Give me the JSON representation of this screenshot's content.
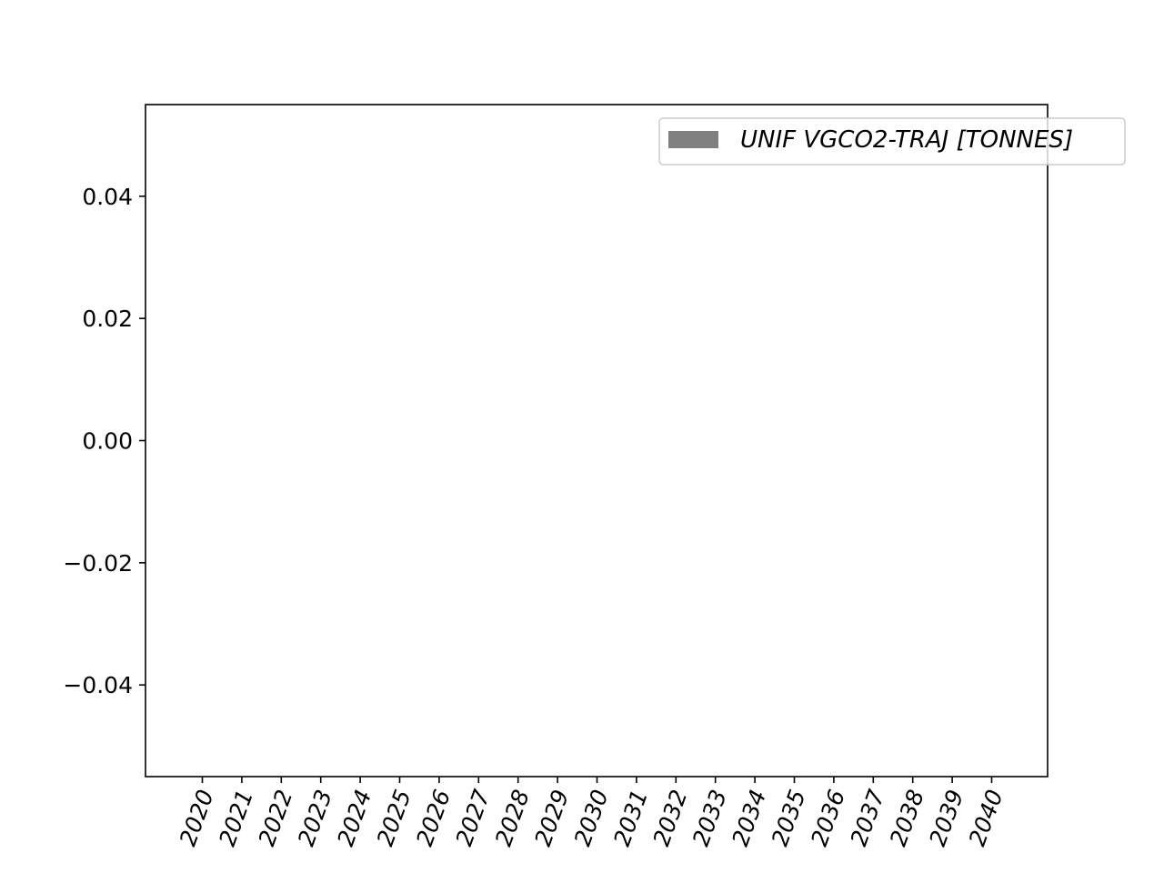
{
  "chart_data": {
    "type": "bar",
    "categories": [
      "2020",
      "2021",
      "2022",
      "2023",
      "2024",
      "2025",
      "2026",
      "2027",
      "2028",
      "2029",
      "2030",
      "2031",
      "2032",
      "2033",
      "2034",
      "2035",
      "2036",
      "2037",
      "2038",
      "2039",
      "2040"
    ],
    "series": [
      {
        "name": "UNIF VGCO2-TRAJ [TONNES]",
        "values": [
          0,
          0,
          0,
          0,
          0,
          0,
          0,
          0,
          0,
          0,
          0,
          0,
          0,
          0,
          0,
          0,
          0,
          0,
          0,
          0,
          0
        ],
        "color": "#808080"
      }
    ],
    "ylim": [
      -0.055,
      0.055
    ],
    "yticks": [
      -0.04,
      -0.02,
      0.0,
      0.02,
      0.04
    ],
    "ytick_labels": [
      "−0.04",
      "−0.02",
      "0.00",
      "0.02",
      "0.04"
    ],
    "xtick_rotation": 70,
    "legend_position": "top-right",
    "grid": false
  }
}
